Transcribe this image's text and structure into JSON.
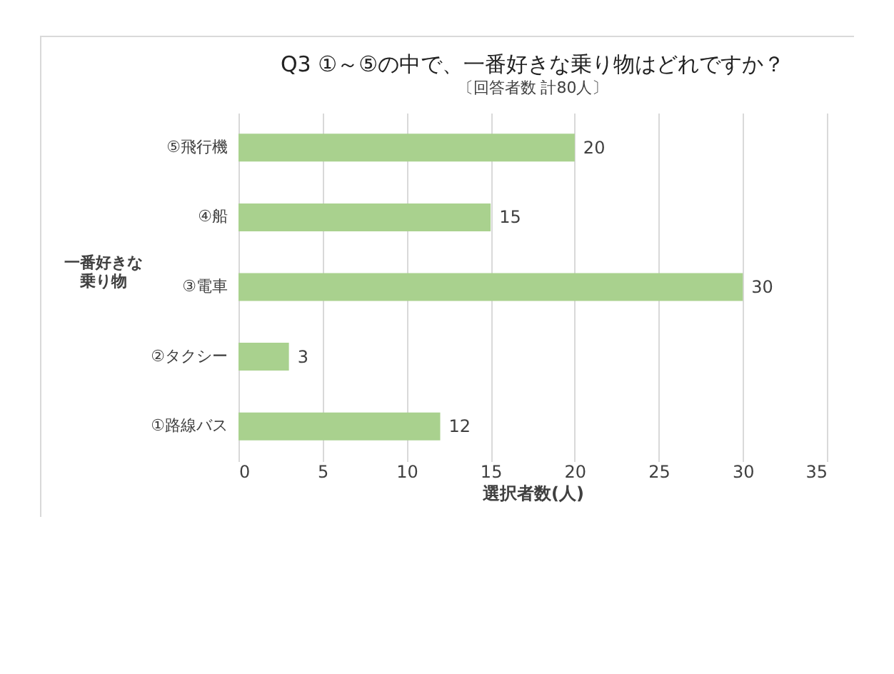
{
  "chart_data": {
    "type": "bar",
    "orientation": "horizontal",
    "title": "Q3 ①～⑤の中で、一番好きな乗り物はどれですか？",
    "subtitle": "〔回答者数 計80人〕",
    "xlabel": "選択者数(人)",
    "ylabel": "一番好きな乗り物",
    "categories": [
      "⑤飛行機",
      "④船",
      "③電車",
      "②タクシー",
      "①路線バス"
    ],
    "values": [
      20,
      15,
      30,
      3,
      12
    ],
    "color": "#a9d18e",
    "xlim": [
      0,
      35
    ],
    "xticks": [
      0,
      5,
      10,
      15,
      20,
      25,
      30,
      35
    ],
    "grid": "x",
    "data_labels": true
  }
}
